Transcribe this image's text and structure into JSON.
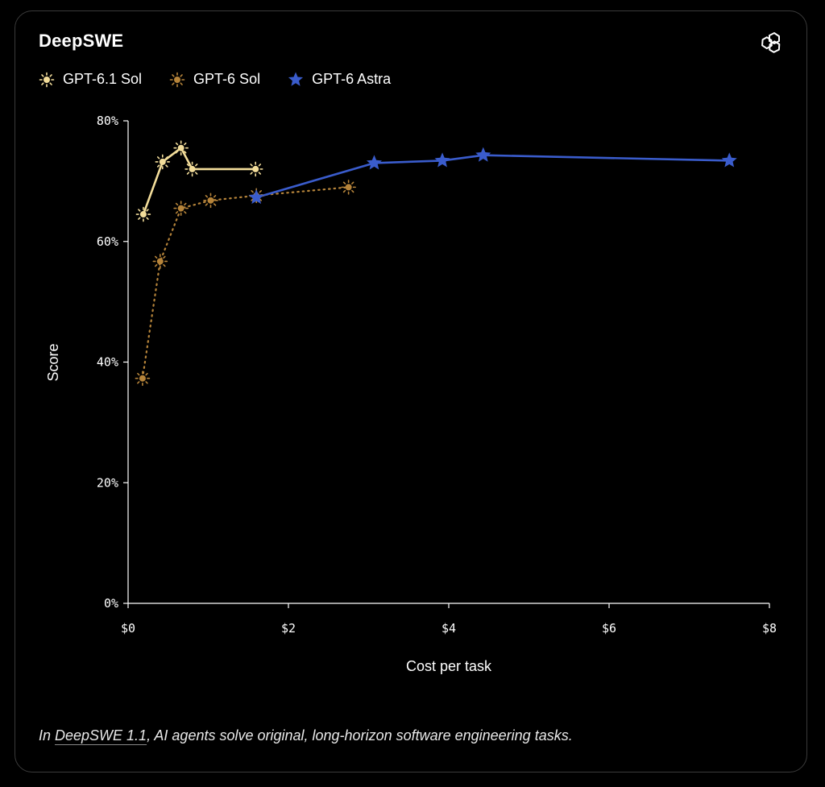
{
  "title": "DeepSWE",
  "caption": {
    "before": "In ",
    "link": "DeepSWE 1.1",
    "after": ", AI agents solve original, long-horizon software engineering tasks."
  },
  "colors": {
    "gpt61_sol": "#f3dd9a",
    "gpt6_sol": "#b6843a",
    "gpt6_astra": "#3a5ccc",
    "axis": "#ffffff",
    "background": "#000000"
  },
  "chart_data": {
    "type": "line",
    "xlabel": "Cost per task",
    "ylabel": "Score",
    "xlim": [
      0,
      8
    ],
    "ylim": [
      0,
      80
    ],
    "xticks": [
      0,
      2,
      4,
      6,
      8
    ],
    "xtick_labels": [
      "$0",
      "$2",
      "$4",
      "$6",
      "$8"
    ],
    "yticks": [
      0,
      20,
      40,
      60,
      80
    ],
    "ytick_labels": [
      "0%",
      "20%",
      "40%",
      "60%",
      "80%"
    ],
    "grid": false,
    "legend_position": "top-left",
    "series": [
      {
        "name": "GPT-6.1 Sol",
        "marker": "sun",
        "line": "solid",
        "points": [
          [
            0.19,
            64.5
          ],
          [
            0.43,
            73.2
          ],
          [
            0.66,
            75.5
          ],
          [
            0.8,
            72.0
          ],
          [
            1.59,
            72.0
          ]
        ]
      },
      {
        "name": "GPT-6 Sol",
        "marker": "sun",
        "line": "dotted",
        "points": [
          [
            0.18,
            37.3
          ],
          [
            0.4,
            56.7
          ],
          [
            0.66,
            65.5
          ],
          [
            1.03,
            66.8
          ],
          [
            1.6,
            67.6
          ],
          [
            2.75,
            69.0
          ]
        ]
      },
      {
        "name": "GPT-6 Astra",
        "marker": "star",
        "line": "solid",
        "points": [
          [
            1.6,
            67.3
          ],
          [
            3.07,
            73.0
          ],
          [
            3.92,
            73.4
          ],
          [
            4.43,
            74.3
          ],
          [
            7.5,
            73.4
          ]
        ]
      }
    ]
  }
}
